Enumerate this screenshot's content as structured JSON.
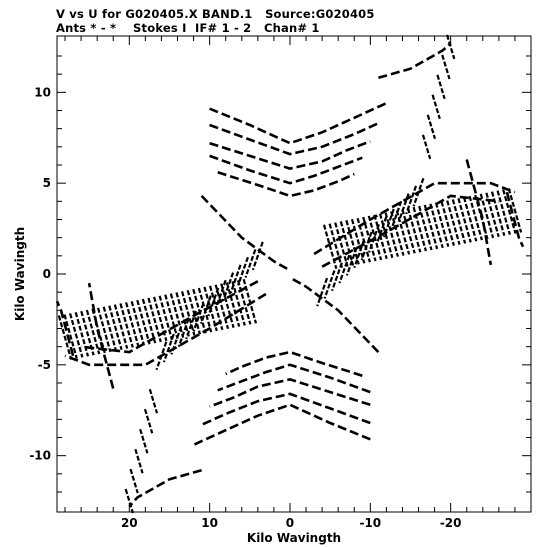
{
  "header": {
    "title_line1": "V vs U for G020405.X BAND.1   Source:G020405",
    "title_line2": "Ants * - *    Stokes I  IF# 1 - 2   Chan# 1"
  },
  "chart_data": {
    "type": "scatter",
    "title": "V vs U for G020405.X BAND.1   Source:G020405",
    "subtitle": "Ants * - *    Stokes I  IF# 1 - 2   Chan# 1",
    "xlabel": "Kilo Wavingth",
    "ylabel": "Kilo Wavingth",
    "xlim": [
      29,
      -30
    ],
    "ylim": [
      -13.1,
      13.1
    ],
    "x_reversed": true,
    "xticks": [
      20,
      10,
      0,
      -10,
      -20
    ],
    "yticks": [
      10,
      5,
      0,
      -5,
      -10
    ],
    "grid": false,
    "point_color": "#000000",
    "description_of_marks": "uv-coverage arcs (short dashed track segments), point-symmetric about the origin",
    "tracks": [
      {
        "points": [
          [
            -11,
            10.8
          ],
          [
            -15,
            11.3
          ],
          [
            -19,
            12.3
          ],
          [
            -20,
            12.7
          ]
        ]
      },
      {
        "points": [
          [
            10,
            9.1
          ],
          [
            5,
            8.2
          ],
          [
            0,
            7.2
          ],
          [
            -4,
            7.8
          ],
          [
            -8,
            8.6
          ],
          [
            -12,
            9.4
          ]
        ]
      },
      {
        "points": [
          [
            10,
            8.2
          ],
          [
            5,
            7.4
          ],
          [
            0,
            6.6
          ],
          [
            -4,
            7.0
          ],
          [
            -8,
            7.7
          ],
          [
            -11,
            8.3
          ]
        ]
      },
      {
        "points": [
          [
            10,
            7.2
          ],
          [
            5,
            6.5
          ],
          [
            0,
            5.8
          ],
          [
            -4,
            6.2
          ],
          [
            -7,
            6.8
          ],
          [
            -10,
            7.3
          ]
        ]
      },
      {
        "points": [
          [
            10,
            6.5
          ],
          [
            5,
            5.7
          ],
          [
            0,
            5.0
          ],
          [
            -3,
            5.4
          ],
          [
            -6,
            5.9
          ],
          [
            -9,
            6.4
          ]
        ]
      },
      {
        "points": [
          [
            9,
            5.6
          ],
          [
            4,
            4.9
          ],
          [
            0,
            4.3
          ],
          [
            -3,
            4.6
          ],
          [
            -6,
            5.1
          ],
          [
            -8,
            5.5
          ]
        ]
      },
      {
        "points": [
          [
            11,
            4.3
          ],
          [
            6,
            2.0
          ],
          [
            2,
            0.7
          ],
          [
            0,
            0.2
          ]
        ]
      },
      {
        "points": [
          [
            -3,
            1.1
          ],
          [
            -10,
            3.0
          ],
          [
            -18,
            5.0
          ],
          [
            -25,
            5.0
          ],
          [
            -28,
            4.5
          ]
        ]
      },
      {
        "points": [
          [
            -4,
            0.4
          ],
          [
            -12,
            2.3
          ],
          [
            -20,
            4.3
          ],
          [
            -26,
            4.0
          ]
        ]
      },
      {
        "points": [
          [
            -22,
            6.3
          ],
          [
            -24,
            3.0
          ],
          [
            -25,
            0.5
          ]
        ]
      },
      {
        "points": [
          [
            -27,
            4.5
          ],
          [
            -28.5,
            2.0
          ],
          [
            -29,
            1.5
          ]
        ]
      },
      {
        "points": [
          [
            11,
            -10.8
          ],
          [
            15,
            -11.3
          ],
          [
            19,
            -12.3
          ],
          [
            20,
            -12.8
          ]
        ]
      },
      {
        "points": [
          [
            -10,
            -9.1
          ],
          [
            -5,
            -8.2
          ],
          [
            0,
            -7.2
          ],
          [
            4,
            -7.8
          ],
          [
            8,
            -8.6
          ],
          [
            12,
            -9.4
          ]
        ]
      },
      {
        "points": [
          [
            -10,
            -8.2
          ],
          [
            -5,
            -7.4
          ],
          [
            0,
            -6.6
          ],
          [
            4,
            -7.0
          ],
          [
            8,
            -7.7
          ],
          [
            11,
            -8.3
          ]
        ]
      },
      {
        "points": [
          [
            -10,
            -7.2
          ],
          [
            -5,
            -6.5
          ],
          [
            0,
            -5.8
          ],
          [
            4,
            -6.2
          ],
          [
            7,
            -6.8
          ],
          [
            10,
            -7.3
          ]
        ]
      },
      {
        "points": [
          [
            -10,
            -6.5
          ],
          [
            -5,
            -5.7
          ],
          [
            0,
            -5.0
          ],
          [
            3,
            -5.4
          ],
          [
            6,
            -5.9
          ],
          [
            9,
            -6.4
          ]
        ]
      },
      {
        "points": [
          [
            -9,
            -5.6
          ],
          [
            -4,
            -4.9
          ],
          [
            0,
            -4.3
          ],
          [
            3,
            -4.6
          ],
          [
            6,
            -5.1
          ],
          [
            8,
            -5.5
          ]
        ]
      },
      {
        "points": [
          [
            -11,
            -4.3
          ],
          [
            -6,
            -2.0
          ],
          [
            -2,
            -0.7
          ],
          [
            0,
            -0.2
          ]
        ]
      },
      {
        "points": [
          [
            3,
            -1.1
          ],
          [
            10,
            -3.0
          ],
          [
            18,
            -5.0
          ],
          [
            25,
            -5.0
          ],
          [
            28,
            -4.5
          ]
        ]
      },
      {
        "points": [
          [
            4,
            -0.4
          ],
          [
            12,
            -2.3
          ],
          [
            20,
            -4.3
          ],
          [
            26,
            -4.0
          ]
        ]
      },
      {
        "points": [
          [
            22,
            -6.3
          ],
          [
            24,
            -3.0
          ],
          [
            25,
            -0.5
          ]
        ]
      },
      {
        "points": [
          [
            27,
            -4.5
          ],
          [
            28.5,
            -2.0
          ],
          [
            29,
            -1.5
          ]
        ]
      }
    ]
  }
}
